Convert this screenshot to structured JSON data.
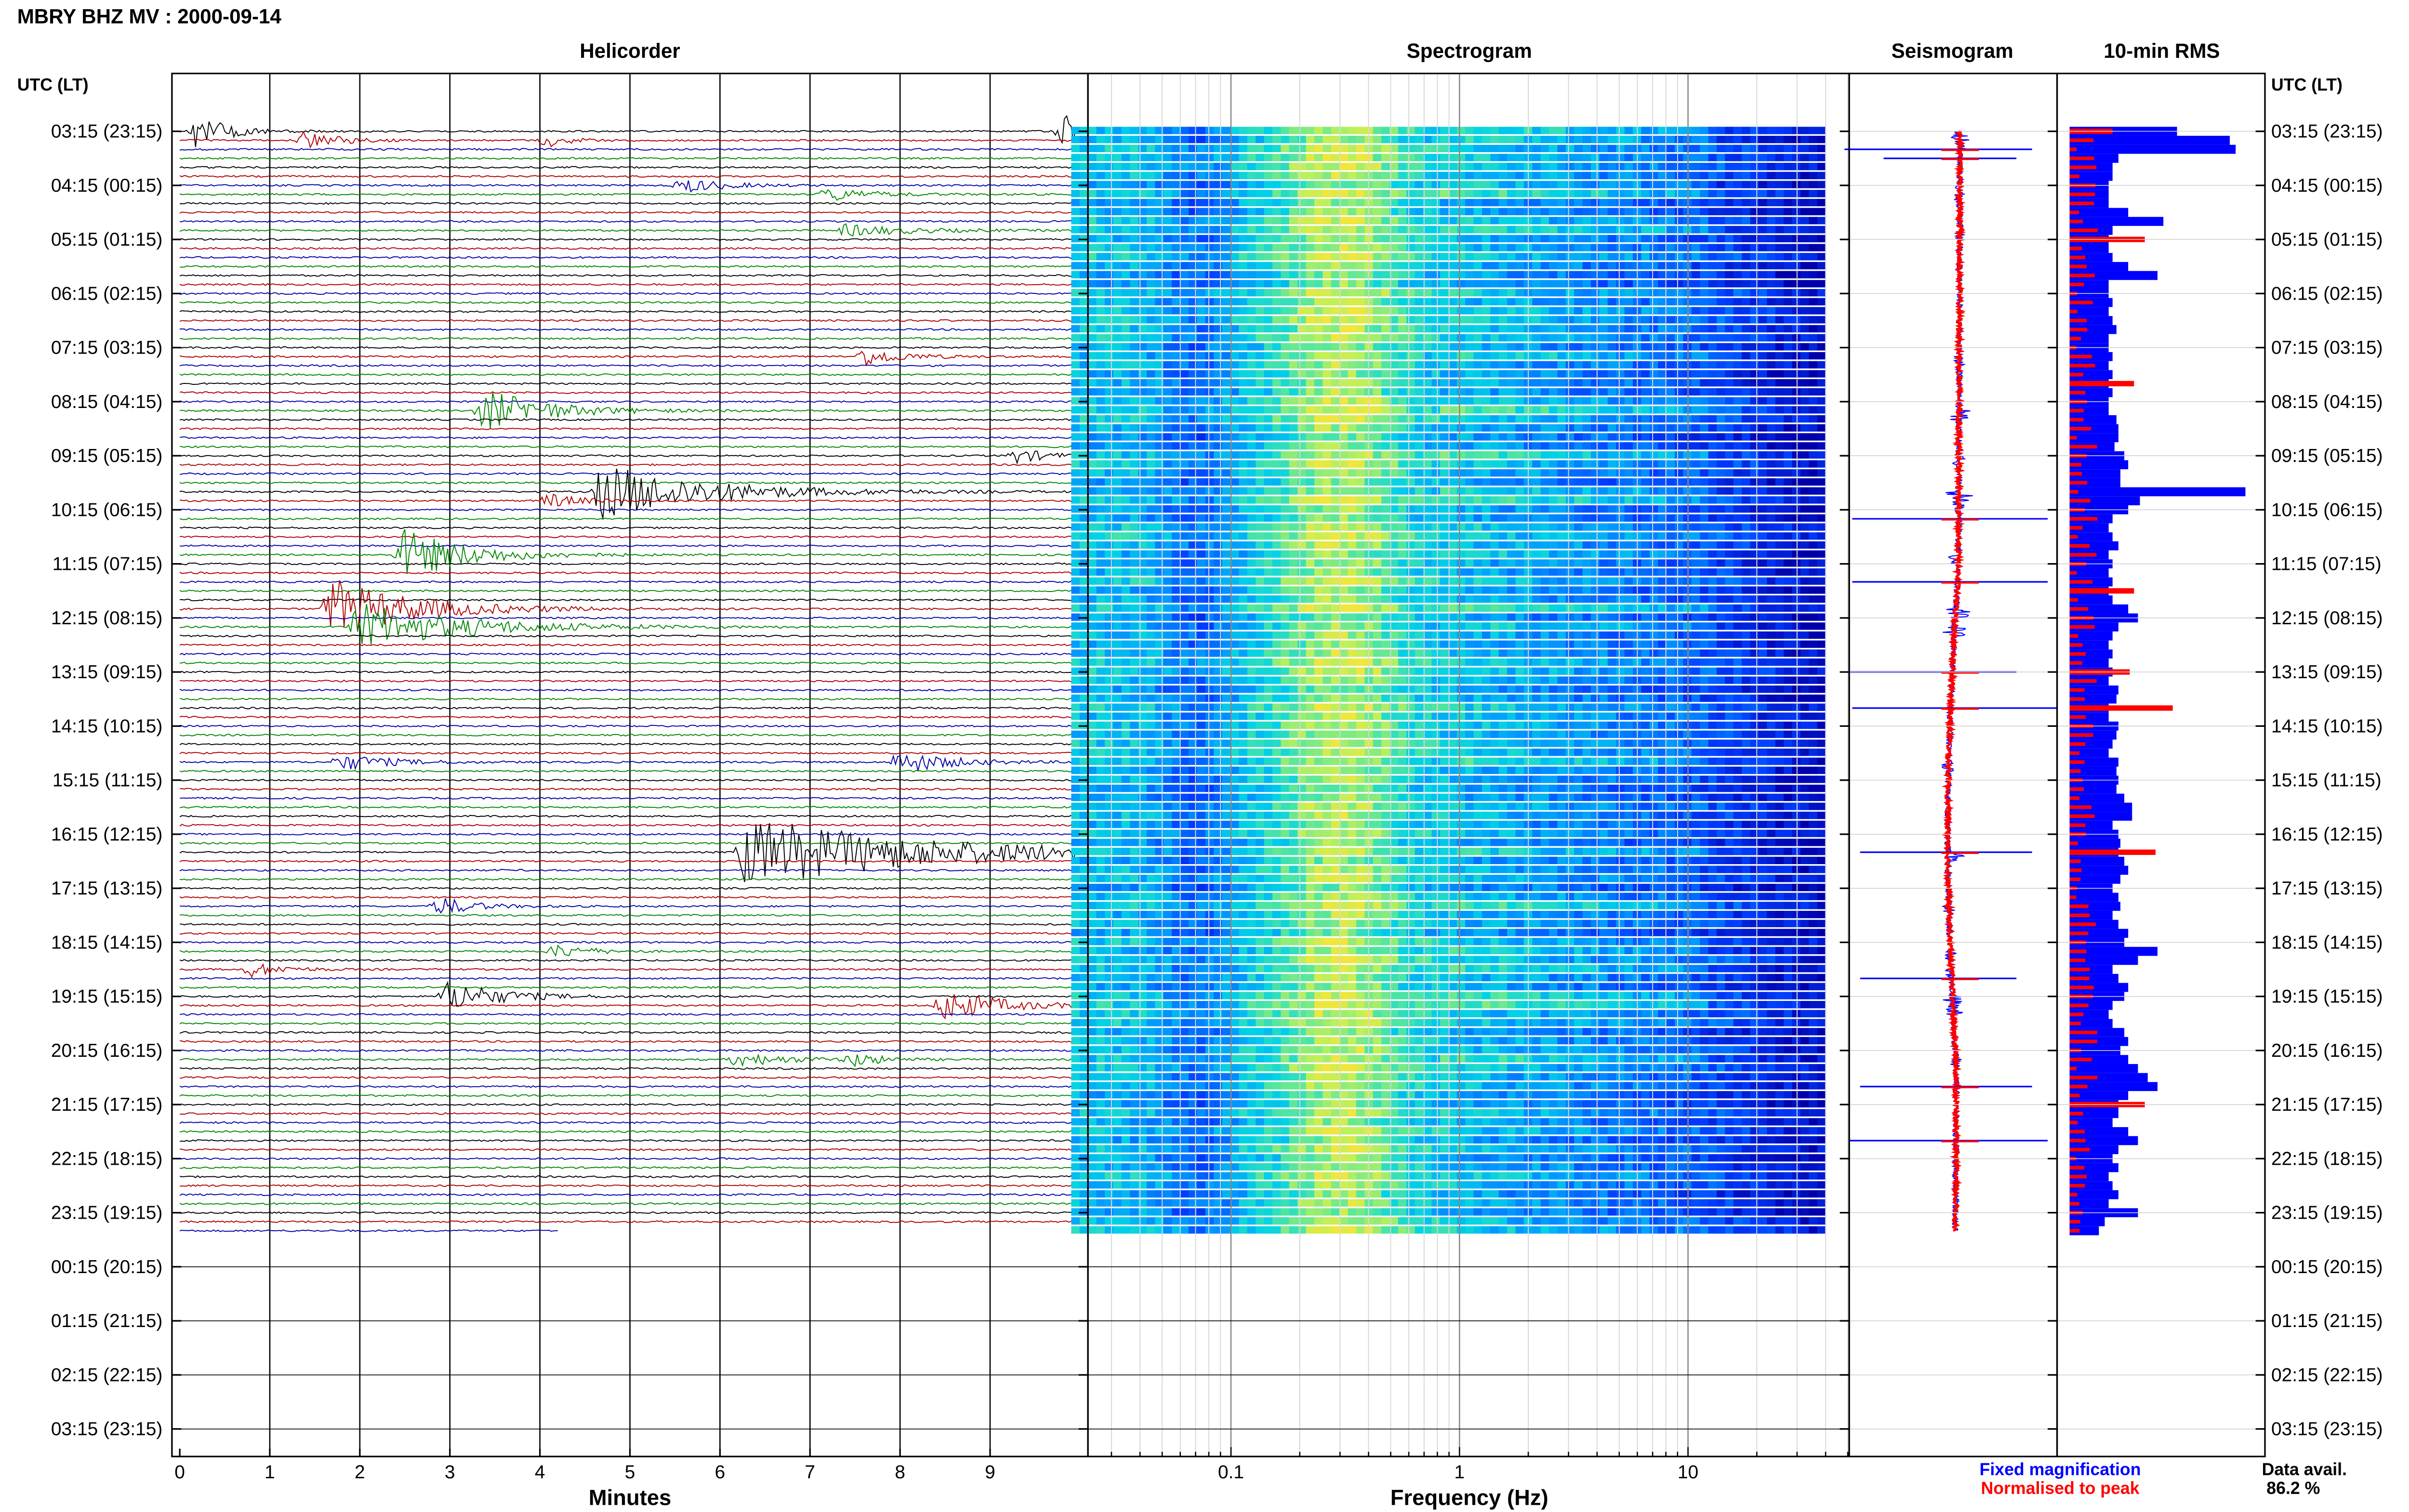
{
  "header": {
    "title": "MBRY BHZ MV : 2000-09-14"
  },
  "panels": {
    "helicorder": "Helicorder",
    "spectrogram": "Spectrogram",
    "seismogram": "Seismogram",
    "rms": "10-min RMS"
  },
  "axis": {
    "left_header": "UTC (LT)",
    "right_header": "UTC (LT)",
    "minutes_label": "Minutes",
    "frequency_label": "Frequency (Hz)"
  },
  "legend": {
    "fixed": "Fixed magnification",
    "normalised": "Normalised to peak",
    "colors": {
      "fixed": "#0000ff",
      "normalised": "#ff0000"
    }
  },
  "availability": {
    "label": "Data avail.",
    "value": "86.2 %"
  },
  "colors": {
    "trace_cycle": [
      "#000000",
      "#b00000",
      "#0000a8",
      "#008800"
    ],
    "rms_fixed": "#0000ff",
    "rms_norm": "#ff0000"
  },
  "chart_data": [
    {
      "type": "line",
      "panel": "Helicorder",
      "xlabel": "Minutes",
      "xticks": [
        "0",
        "1",
        "2",
        "3",
        "4",
        "5",
        "6",
        "7",
        "8",
        "9"
      ],
      "xlim": [
        0,
        10
      ],
      "row_minutes": 10,
      "row_count": 126,
      "data_end_row": 123,
      "data_end_minute": 4.2,
      "y_tick_labels": [
        "03:15 (23:15)",
        "04:15 (00:15)",
        "05:15 (01:15)",
        "06:15 (02:15)",
        "07:15 (03:15)",
        "08:15 (04:15)",
        "09:15 (05:15)",
        "10:15 (06:15)",
        "11:15 (07:15)",
        "12:15 (08:15)",
        "13:15 (09:15)",
        "14:15 (10:15)",
        "15:15 (11:15)",
        "16:15 (12:15)",
        "17:15 (13:15)",
        "18:15 (14:15)",
        "19:15 (15:15)",
        "20:15 (16:15)",
        "21:15 (17:15)",
        "22:15 (18:15)",
        "23:15 (19:15)",
        "00:15 (20:15)",
        "01:15 (21:15)",
        "02:15 (22:15)",
        "03:15 (23:15)"
      ],
      "events": [
        {
          "row": 0,
          "minute": 0.2,
          "amp": 1.6,
          "dur": 0.7
        },
        {
          "row": 0,
          "minute": 9.85,
          "amp": 1.5,
          "dur": 0.4
        },
        {
          "row": 1,
          "minute": 1.4,
          "amp": 0.8,
          "dur": 0.8
        },
        {
          "row": 1,
          "minute": 4.1,
          "amp": 0.6,
          "dur": 0.5
        },
        {
          "row": 6,
          "minute": 5.6,
          "amp": 0.6,
          "dur": 1.0
        },
        {
          "row": 7,
          "minute": 7.2,
          "amp": 0.6,
          "dur": 1.0
        },
        {
          "row": 11,
          "minute": 7.4,
          "amp": 0.5,
          "dur": 1.6
        },
        {
          "row": 25,
          "minute": 7.6,
          "amp": 0.8,
          "dur": 0.9
        },
        {
          "row": 31,
          "minute": 3.4,
          "amp": 1.8,
          "dur": 1.5
        },
        {
          "row": 36,
          "minute": 9.3,
          "amp": 0.6,
          "dur": 0.8
        },
        {
          "row": 40,
          "minute": 4.7,
          "amp": 2.4,
          "dur": 2.5
        },
        {
          "row": 41,
          "minute": 4.1,
          "amp": 0.6,
          "dur": 0.8
        },
        {
          "row": 47,
          "minute": 2.5,
          "amp": 2.2,
          "dur": 1.5
        },
        {
          "row": 53,
          "minute": 1.7,
          "amp": 2.6,
          "dur": 2.0
        },
        {
          "row": 55,
          "minute": 2.0,
          "amp": 2.0,
          "dur": 2.5
        },
        {
          "row": 70,
          "minute": 1.8,
          "amp": 0.7,
          "dur": 1.2
        },
        {
          "row": 70,
          "minute": 8.0,
          "amp": 1.0,
          "dur": 1.2
        },
        {
          "row": 80,
          "minute": 6.3,
          "amp": 3.0,
          "dur": 4.5
        },
        {
          "row": 86,
          "minute": 2.9,
          "amp": 0.8,
          "dur": 0.8
        },
        {
          "row": 91,
          "minute": 4.2,
          "amp": 0.6,
          "dur": 0.8
        },
        {
          "row": 93,
          "minute": 0.8,
          "amp": 0.6,
          "dur": 0.8
        },
        {
          "row": 96,
          "minute": 3.0,
          "amp": 1.4,
          "dur": 1.2
        },
        {
          "row": 97,
          "minute": 8.5,
          "amp": 1.4,
          "dur": 1.3
        },
        {
          "row": 103,
          "minute": 6.2,
          "amp": 0.6,
          "dur": 1.2
        },
        {
          "row": 103,
          "minute": 7.5,
          "amp": 0.6,
          "dur": 0.6
        }
      ]
    },
    {
      "type": "heatmap",
      "panel": "Spectrogram",
      "xlabel": "Frequency (Hz)",
      "xscale": "log",
      "xticks": [
        "0.1",
        "1",
        "10"
      ],
      "xlim": [
        0.02,
        50
      ],
      "fmax_data": 40,
      "rows": 123
    },
    {
      "type": "line",
      "panel": "Seismogram",
      "series": [
        {
          "name": "Fixed magnification",
          "color": "#0000ff"
        },
        {
          "name": "Normalised to peak",
          "color": "#ff0000"
        }
      ]
    },
    {
      "type": "bar",
      "panel": "10-min RMS",
      "series": [
        {
          "name": "Fixed magnification",
          "values": [
            0.55,
            0.82,
            0.85,
            0.25,
            0.22,
            0.22,
            0.2,
            0.2,
            0.2,
            0.3,
            0.48,
            0.22,
            0.2,
            0.2,
            0.22,
            0.3,
            0.45,
            0.2,
            0.2,
            0.22,
            0.2,
            0.22,
            0.24,
            0.2,
            0.2,
            0.22,
            0.2,
            0.22,
            0.2,
            0.22,
            0.2,
            0.2,
            0.24,
            0.25,
            0.25,
            0.23,
            0.28,
            0.3,
            0.26,
            0.26,
            0.9,
            0.36,
            0.3,
            0.22,
            0.2,
            0.22,
            0.25,
            0.2,
            0.22,
            0.2,
            0.22,
            0.2,
            0.22,
            0.3,
            0.35,
            0.25,
            0.22,
            0.2,
            0.22,
            0.2,
            0.22,
            0.2,
            0.25,
            0.24,
            0.2,
            0.2,
            0.25,
            0.24,
            0.22,
            0.2,
            0.25,
            0.24,
            0.25,
            0.24,
            0.28,
            0.32,
            0.32,
            0.22,
            0.25,
            0.26,
            0.25,
            0.28,
            0.3,
            0.26,
            0.22,
            0.25,
            0.26,
            0.22,
            0.25,
            0.3,
            0.28,
            0.45,
            0.35,
            0.22,
            0.25,
            0.3,
            0.28,
            0.22,
            0.2,
            0.22,
            0.28,
            0.3,
            0.26,
            0.3,
            0.35,
            0.4,
            0.45,
            0.3,
            0.25,
            0.25,
            0.22,
            0.3,
            0.35,
            0.25,
            0.22,
            0.25,
            0.2,
            0.22,
            0.25,
            0.2,
            0.35,
            0.18,
            0.15
          ]
        }
      ]
    }
  ]
}
